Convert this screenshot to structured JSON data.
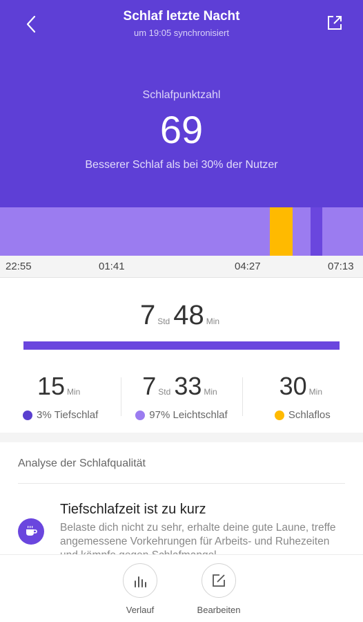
{
  "header": {
    "title": "Schlaf letzte Nacht",
    "subtitle": "um 19:05 synchronisiert",
    "back_icon": "chevron-left-icon",
    "share_icon": "share-icon"
  },
  "score": {
    "label": "Schlafpunktzahl",
    "value": "69",
    "comparison": "Besserer Schlaf als bei 30% der Nutzer"
  },
  "timeline": {
    "times": [
      "22:55",
      "01:41",
      "04:27",
      "07:13"
    ],
    "awake_color": "#ffba00",
    "light_color": "#9b7cf0",
    "deep_color": "#6a46de"
  },
  "summary": {
    "total_hours": "7",
    "hours_unit": "Std",
    "total_minutes": "48",
    "minutes_unit": "Min",
    "bar_color": "#6a46de"
  },
  "stats": [
    {
      "value": "15",
      "unit": "Min",
      "label": "3% Tiefschlaf",
      "color": "#5a3fcf"
    },
    {
      "hours": "7",
      "hours_unit": "Std",
      "minutes": "33",
      "minutes_unit": "Min",
      "label": "97% Leichtschlaf",
      "color": "#9b7cf0"
    },
    {
      "value": "30",
      "unit": "Min",
      "label": "Schlaflos",
      "color": "#ffba00"
    }
  ],
  "analysis": {
    "title": "Analyse der Schlafqualität",
    "tip_title": "Tiefschlafzeit ist zu kurz",
    "tip_text": "Belaste dich nicht zu sehr, erhalte deine gute Laune, treffe angemessene Vorkehrungen für Arbeits- und Ruhezeiten und kämpfe gegen Schlafmangel.",
    "icon": "coffee-cup-icon"
  },
  "bottom": {
    "history_label": "Verlauf",
    "edit_label": "Bearbeiten"
  }
}
